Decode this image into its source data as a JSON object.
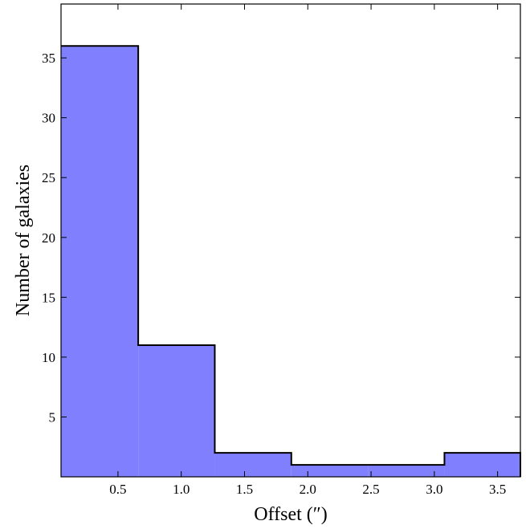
{
  "chart_data": {
    "type": "bar",
    "histogram": true,
    "xlabel": "Offset (″)",
    "ylabel": "Number of galaxies",
    "xlim": [
      0.05,
      3.68
    ],
    "ylim": [
      0,
      39.5
    ],
    "bin_edges": [
      0.05,
      0.66,
      1.265,
      1.87,
      2.475,
      3.08,
      3.68
    ],
    "values": [
      36,
      11,
      2,
      1,
      1,
      2
    ],
    "x_ticks": [
      0.5,
      1.0,
      1.5,
      2.0,
      2.5,
      3.0,
      3.5
    ],
    "x_tick_labels": [
      "0.5",
      "1.0",
      "1.5",
      "2.0",
      "2.5",
      "3.0",
      "3.5"
    ],
    "y_ticks": [
      5,
      10,
      15,
      20,
      25,
      30,
      35
    ],
    "y_tick_labels": [
      "5",
      "10",
      "15",
      "20",
      "25",
      "30",
      "35"
    ],
    "grid": false,
    "fill_color": "#8080ff",
    "edge_color": "#000000"
  }
}
